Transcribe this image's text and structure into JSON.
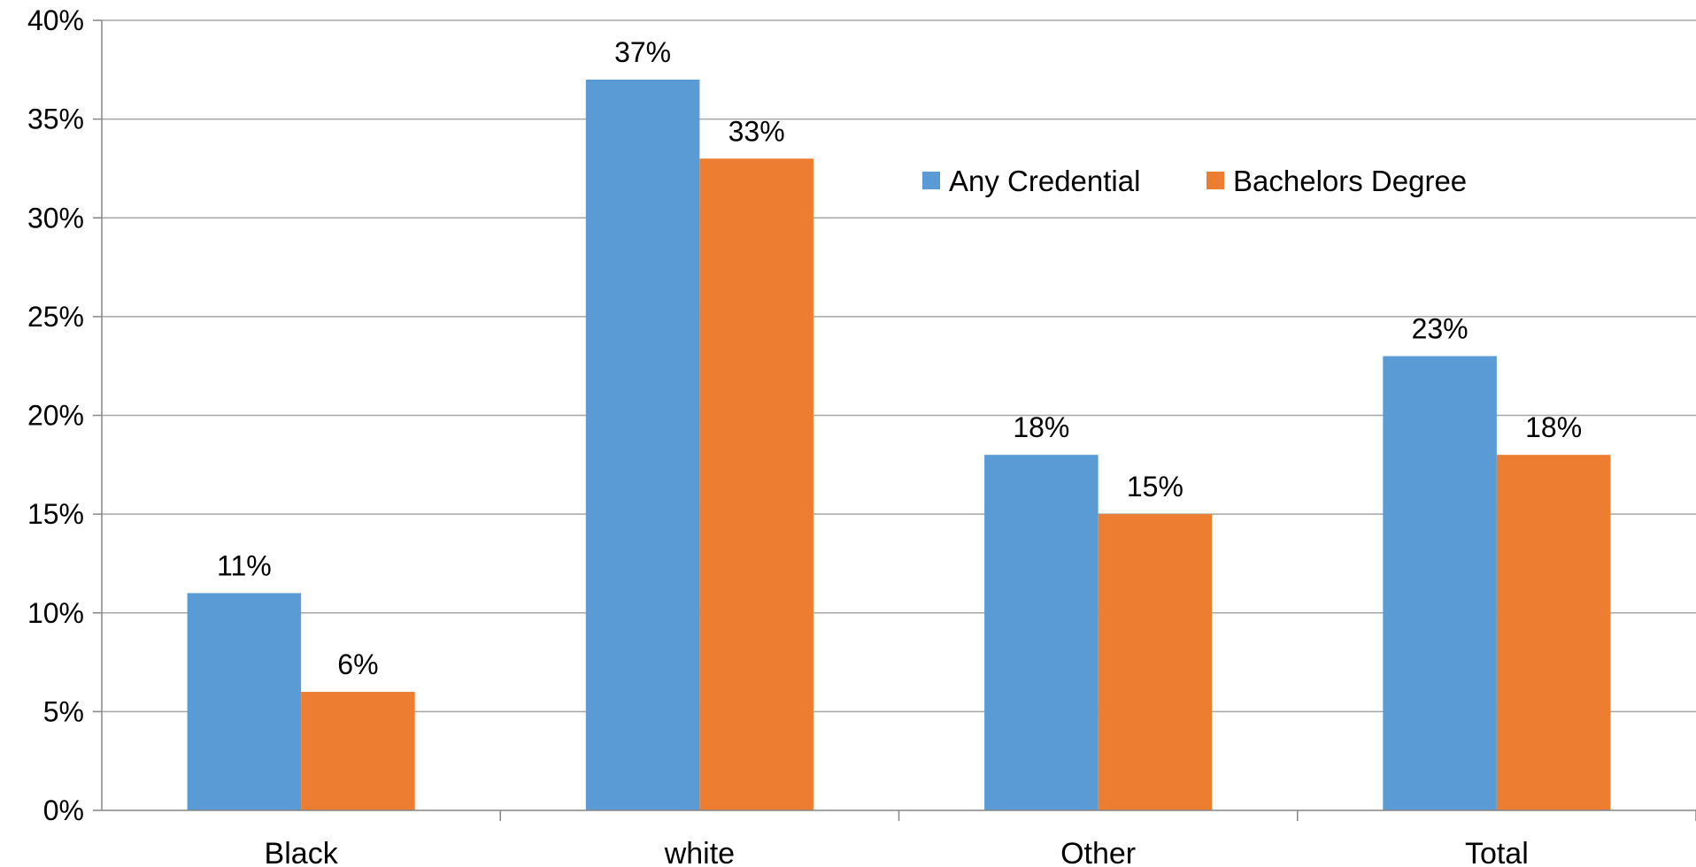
{
  "chart_data": {
    "type": "bar",
    "categories": [
      "Black",
      "white",
      "Other",
      "Total"
    ],
    "series": [
      {
        "name": "Any Credential",
        "values": [
          11,
          37,
          18,
          23
        ],
        "labels": [
          "11%",
          "37%",
          "18%",
          "23%"
        ],
        "color": "#5b9bd5"
      },
      {
        "name": "Bachelors Degree",
        "values": [
          6,
          33,
          15,
          18
        ],
        "labels": [
          "6%",
          "33%",
          "15%",
          "18%"
        ],
        "color": "#ed7d31"
      }
    ],
    "ylim": [
      0,
      40
    ],
    "yticks": [
      0,
      5,
      10,
      15,
      20,
      25,
      30,
      35,
      40
    ],
    "ytick_labels": [
      "0%",
      "5%",
      "10%",
      "15%",
      "20%",
      "25%",
      "30%",
      "35%",
      "40%"
    ],
    "title": "",
    "xlabel": "",
    "ylabel": "",
    "grid": true,
    "legend_position": "top-right"
  }
}
